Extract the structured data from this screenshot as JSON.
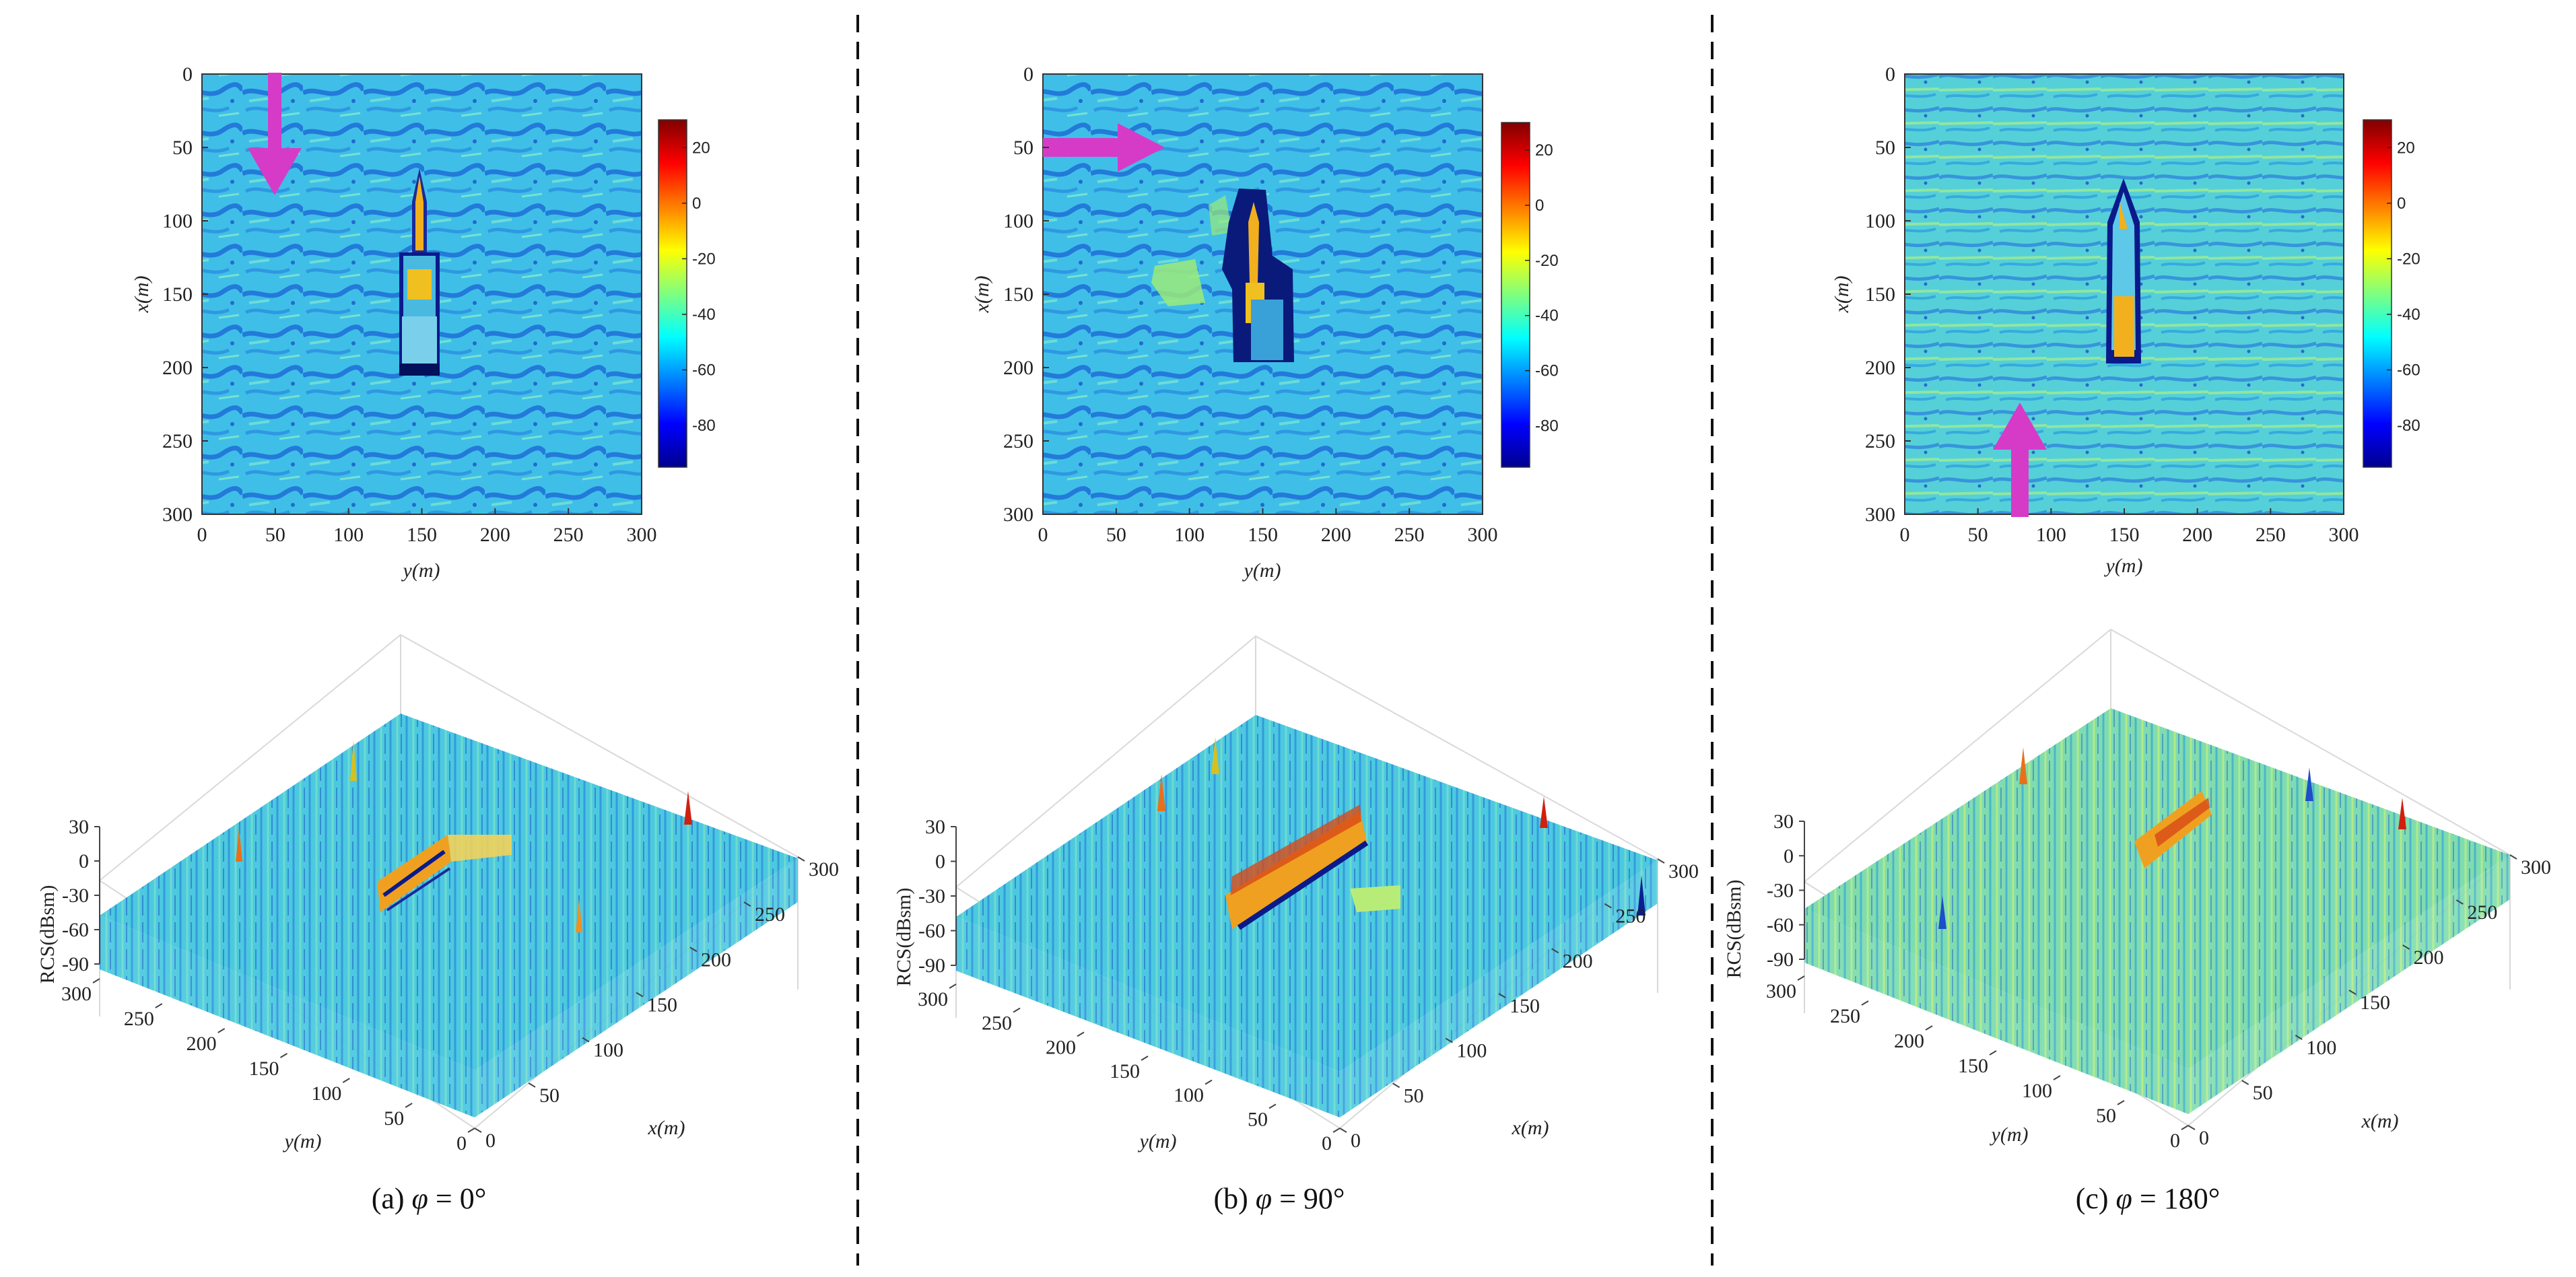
{
  "figure": {
    "arrow_color": "#d63bc8",
    "divider_color": "#111111"
  },
  "chart_data": [
    {
      "type": "heatmap",
      "panel": "a",
      "title": "",
      "xlabel": "y(m)",
      "ylabel": "x(m)",
      "xlim": [
        0,
        300
      ],
      "ylim": [
        0,
        300
      ],
      "x_ticks": [
        "0",
        "50",
        "100",
        "150",
        "200",
        "250",
        "300"
      ],
      "y_ticks": [
        "0",
        "50",
        "100",
        "150",
        "200",
        "250",
        "300"
      ],
      "colorbar": {
        "label": "",
        "range": [
          -95,
          30
        ],
        "ticks": [
          "20",
          "0",
          "-20",
          "-40",
          "-60",
          "-80"
        ]
      },
      "ship": {
        "x_range_m": [
          65,
          205
        ],
        "y_center_m": 148,
        "heading": "bow toward x=65"
      },
      "incident_arrow": {
        "direction": "down",
        "y_m": 50
      }
    },
    {
      "type": "surface",
      "panel": "a",
      "xlabel": "x(m)",
      "ylabel": "y(m)",
      "zlabel": "RCS(dBsm)",
      "zlim": [
        -90,
        30
      ],
      "z_ticks": [
        "30",
        "0",
        "-30",
        "-60",
        "-90"
      ],
      "x_ticks": [
        "0",
        "50",
        "100",
        "150",
        "200",
        "250",
        "300"
      ],
      "y_ticks": [
        "0",
        "50",
        "100",
        "150",
        "200",
        "250",
        "300"
      ]
    },
    {
      "type": "heatmap",
      "panel": "b",
      "title": "",
      "xlabel": "y(m)",
      "ylabel": "x(m)",
      "xlim": [
        0,
        300
      ],
      "ylim": [
        0,
        300
      ],
      "x_ticks": [
        "0",
        "50",
        "100",
        "150",
        "200",
        "250",
        "300"
      ],
      "y_ticks": [
        "0",
        "50",
        "100",
        "150",
        "200",
        "250",
        "300"
      ],
      "colorbar": {
        "label": "",
        "range": [
          -95,
          30
        ],
        "ticks": [
          "20",
          "0",
          "-20",
          "-40",
          "-60",
          "-80"
        ]
      },
      "ship": {
        "x_range_m": [
          70,
          195
        ],
        "y_center_m": 148,
        "heading": "bow toward x=70"
      },
      "incident_arrow": {
        "direction": "right",
        "x_m": 50
      }
    },
    {
      "type": "surface",
      "panel": "b",
      "xlabel": "x(m)",
      "ylabel": "y(m)",
      "zlabel": "RCS(dBsm)",
      "zlim": [
        -90,
        30
      ],
      "z_ticks": [
        "30",
        "0",
        "-30",
        "-60",
        "-90"
      ],
      "x_ticks": [
        "0",
        "50",
        "100",
        "150",
        "200",
        "250",
        "300"
      ],
      "y_ticks": [
        "0",
        "50",
        "100",
        "150",
        "200",
        "250",
        "300"
      ]
    },
    {
      "type": "heatmap",
      "panel": "c",
      "title": "",
      "xlabel": "y(m)",
      "ylabel": "x(m)",
      "xlim": [
        0,
        300
      ],
      "ylim": [
        0,
        300
      ],
      "x_ticks": [
        "0",
        "50",
        "100",
        "150",
        "200",
        "250",
        "300"
      ],
      "y_ticks": [
        "0",
        "50",
        "100",
        "150",
        "200",
        "250",
        "300"
      ],
      "colorbar": {
        "label": "",
        "range": [
          -95,
          30
        ],
        "ticks": [
          "20",
          "0",
          "-20",
          "-40",
          "-60",
          "-80"
        ]
      },
      "ship": {
        "x_range_m": [
          70,
          205
        ],
        "y_center_m": 148,
        "heading": "bow toward x=70"
      },
      "incident_arrow": {
        "direction": "up",
        "y_m": 78
      }
    },
    {
      "type": "surface",
      "panel": "c",
      "xlabel": "x(m)",
      "ylabel": "y(m)",
      "zlabel": "RCS(dBsm)",
      "zlim": [
        -90,
        30
      ],
      "z_ticks": [
        "30",
        "0",
        "-30",
        "-60",
        "-90"
      ],
      "x_ticks": [
        "0",
        "50",
        "100",
        "150",
        "200",
        "250",
        "300"
      ],
      "y_ticks": [
        "0",
        "50",
        "100",
        "150",
        "200",
        "250",
        "300"
      ]
    }
  ],
  "captions": [
    {
      "label": "(a) ",
      "symbol": "φ",
      "value": " = 0°"
    },
    {
      "label": "(b) ",
      "symbol": "φ",
      "value": " = 90°"
    },
    {
      "label": "(c) ",
      "symbol": "φ",
      "value": " = 180°"
    }
  ]
}
